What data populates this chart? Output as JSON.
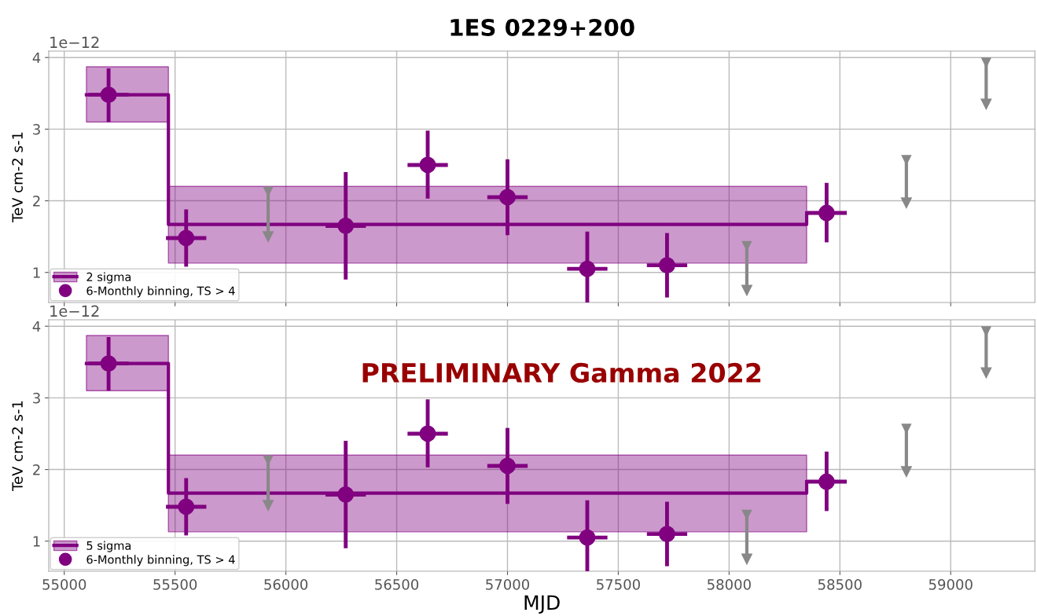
{
  "chart_data": [
    {
      "type": "scatter",
      "title": "1ES 0229+200",
      "ylabel": "TeV cm-2 s-1",
      "annotations": [
        "1e−12"
      ],
      "xlim": [
        54930,
        59380
      ],
      "xticks": [
        55000,
        55500,
        56000,
        56500,
        57000,
        57500,
        58000,
        58500,
        59000
      ],
      "ylim": [
        0.58,
        4.09
      ],
      "yticks": [
        1,
        2,
        3,
        4
      ],
      "grid": true,
      "legend": "bottom left",
      "tick_labels": "y",
      "series": [
        {
          "name": "2 sigma",
          "type": "step",
          "color": "#800080",
          "x": [
            55100,
            55470,
            58350
          ],
          "values": [
            3.48,
            1.67,
            1.83
          ],
          "lower": [
            3.1,
            1.13,
            1.13
          ],
          "upper": [
            3.87,
            2.2,
            2.2
          ]
        },
        {
          "name": "6-Monthly binning, TS > 4",
          "type": "scatter",
          "marker": "circle",
          "color": "#800080",
          "x": [
            55200,
            55550,
            56270,
            56640,
            57000,
            57360,
            57720,
            58440
          ],
          "values": [
            3.48,
            1.48,
            1.65,
            2.5,
            2.05,
            1.05,
            1.1,
            1.83
          ],
          "errors": [
            [
              3.1,
              3.85
            ],
            [
              1.08,
              1.88
            ],
            [
              0.9,
              2.4
            ],
            [
              2.03,
              2.98
            ],
            [
              1.52,
              2.58
            ],
            [
              0.55,
              1.57
            ],
            [
              0.65,
              1.55
            ],
            [
              1.42,
              2.25
            ]
          ],
          "xerrors": [
            91,
            91,
            91,
            91,
            91,
            91,
            91,
            91
          ]
        },
        {
          "type": "scatter",
          "marker": "triangle",
          "color": "#888888",
          "x": [
            55920,
            58080,
            58800,
            59160
          ],
          "values": [
            2.13,
            1.37,
            2.57,
            3.93
          ],
          "errors": [
            [
              1.5,
              2.13
            ],
            [
              0.75,
              1.37
            ],
            [
              1.97,
              2.57
            ],
            [
              3.35,
              3.93
            ]
          ]
        }
      ]
    },
    {
      "type": "scatter",
      "xlabel": "MJD",
      "ylabel": "TeV cm-2 s-1",
      "annotations": [
        "1e−12",
        "PRELIMINARY Gamma 2022"
      ],
      "xlim": [
        54930,
        59380
      ],
      "xticks": [
        55000,
        55500,
        56000,
        56500,
        57000,
        57500,
        58000,
        58500,
        59000
      ],
      "ylim": [
        0.58,
        4.09
      ],
      "yticks": [
        1,
        2,
        3,
        4
      ],
      "grid": true,
      "legend": "bottom left",
      "series": [
        {
          "name": "5 sigma",
          "type": "step",
          "color": "#800080",
          "x": [
            55100,
            55470,
            58350
          ],
          "values": [
            3.48,
            1.67,
            1.83
          ],
          "lower": [
            3.1,
            1.13,
            1.13
          ],
          "upper": [
            3.87,
            2.2,
            2.2
          ]
        },
        {
          "name": "6-Monthly binning, TS > 4",
          "type": "scatter",
          "marker": "circle",
          "color": "#800080",
          "x": [
            55200,
            55550,
            56270,
            56640,
            57000,
            57360,
            57720,
            58440
          ],
          "values": [
            3.48,
            1.48,
            1.65,
            2.5,
            2.05,
            1.05,
            1.1,
            1.83
          ],
          "errors": [
            [
              3.1,
              3.85
            ],
            [
              1.08,
              1.88
            ],
            [
              0.9,
              2.4
            ],
            [
              2.03,
              2.98
            ],
            [
              1.52,
              2.58
            ],
            [
              0.55,
              1.57
            ],
            [
              0.65,
              1.55
            ],
            [
              1.42,
              2.25
            ]
          ],
          "xerrors": [
            91,
            91,
            91,
            91,
            91,
            91,
            91,
            91
          ]
        },
        {
          "type": "scatter",
          "marker": "triangle",
          "color": "#888888",
          "x": [
            55920,
            58080,
            58800,
            59160
          ],
          "values": [
            2.13,
            1.37,
            2.57,
            3.93
          ],
          "errors": [
            [
              1.5,
              2.13
            ],
            [
              0.75,
              1.37
            ],
            [
              1.97,
              2.57
            ],
            [
              3.35,
              3.93
            ]
          ]
        }
      ]
    }
  ]
}
